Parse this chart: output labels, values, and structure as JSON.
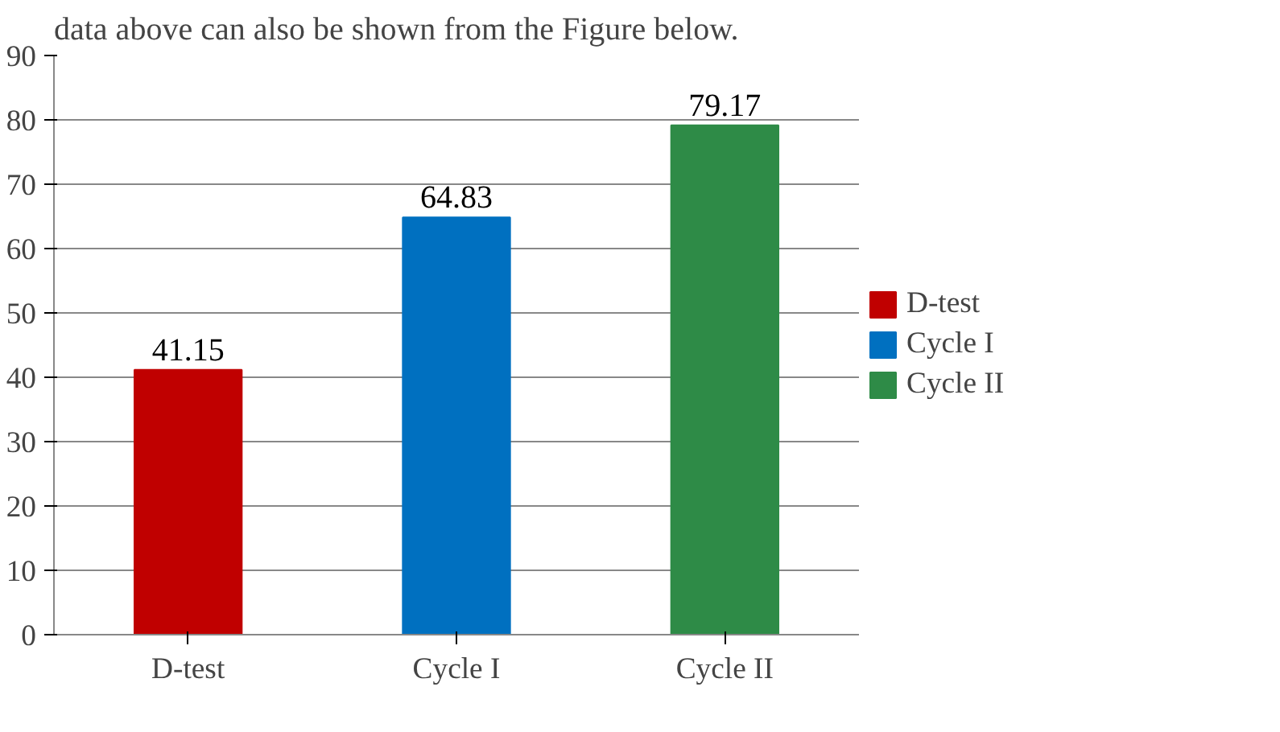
{
  "chart_data": {
    "type": "bar",
    "stacked": true,
    "categories": [
      "D-test",
      "Cycle I",
      "Cycle II"
    ],
    "series": [
      {
        "name": "D-test",
        "color": "#c00000",
        "values": [
          41.15,
          null,
          null
        ]
      },
      {
        "name": "Cycle I",
        "color": "#0070c0",
        "values": [
          null,
          64.83,
          null
        ]
      },
      {
        "name": "Cycle II",
        "color": "#2e8b47",
        "values": [
          null,
          null,
          79.17
        ]
      }
    ],
    "ylim": [
      0,
      90
    ],
    "yticks": [
      0,
      10,
      20,
      30,
      40,
      50,
      60,
      70,
      80,
      90
    ],
    "grid": "y",
    "legend": "right",
    "data_labels": true,
    "annotations": [
      "data above can also be shown from the Figure below."
    ]
  }
}
